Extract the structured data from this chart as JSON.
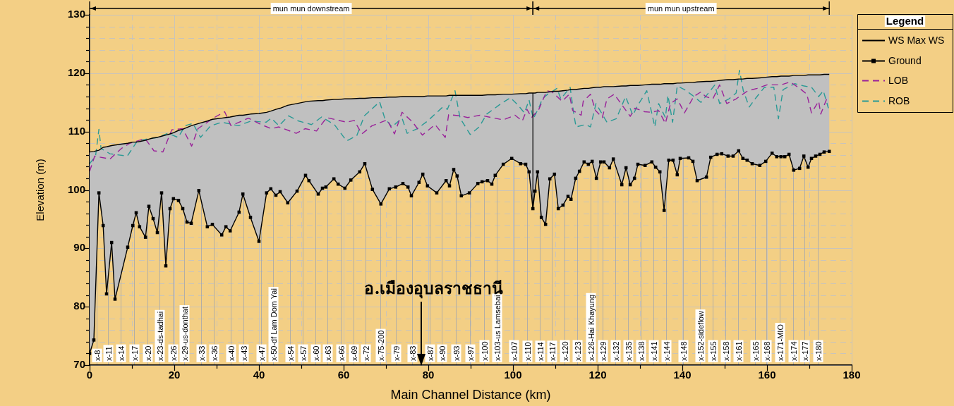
{
  "chart_data": {
    "type": "line",
    "xlabel": "Main Channel Distance (km)",
    "ylabel": "Elevation (m)",
    "xlim": [
      0,
      180
    ],
    "xticks": [
      0,
      {
        "value": 10,
        "label": null
      },
      20,
      {
        "value": 30,
        "label": null
      },
      40,
      {
        "value": 50,
        "label": null
      },
      60,
      {
        "value": 70,
        "label": null
      },
      80,
      {
        "value": 90,
        "label": null
      },
      100,
      {
        "value": 110,
        "label": null
      },
      120,
      {
        "value": 130,
        "label": null
      },
      140,
      {
        "value": 150,
        "label": null
      },
      160,
      {
        "value": 170,
        "label": null
      },
      180
    ],
    "ylim": [
      70,
      130
    ],
    "yticks": [
      70,
      {
        "value": 72,
        "label": null
      },
      {
        "value": 74,
        "label": null
      },
      {
        "value": 76,
        "label": null
      },
      {
        "value": 78,
        "label": null
      },
      80,
      {
        "value": 82,
        "label": null
      },
      {
        "value": 84,
        "label": null
      },
      {
        "value": 86,
        "label": null
      },
      {
        "value": 88,
        "label": null
      },
      90,
      {
        "value": 92,
        "label": null
      },
      {
        "value": 94,
        "label": null
      },
      {
        "value": 96,
        "label": null
      },
      {
        "value": 98,
        "label": null
      },
      100,
      {
        "value": 102,
        "label": null
      },
      {
        "value": 104,
        "label": null
      },
      {
        "value": 106,
        "label": null
      },
      {
        "value": 108,
        "label": null
      },
      110,
      {
        "value": 112,
        "label": null
      },
      {
        "value": 114,
        "label": null
      },
      {
        "value": 116,
        "label": null
      },
      {
        "value": 118,
        "label": null
      },
      120,
      {
        "value": 122,
        "label": null
      },
      {
        "value": 124,
        "label": null
      },
      {
        "value": 126,
        "label": null
      },
      {
        "value": 128,
        "label": null
      },
      130
    ],
    "grid": true,
    "legend": "right",
    "legend_title": "Legend",
    "marker": "none",
    "line_style": "solid",
    "series": [
      {
        "name": "WS Max WS",
        "type": "line",
        "color": "#000000",
        "x": [
          0,
          1,
          2.2,
          3.2,
          4,
          5.2,
          6,
          9,
          10.2,
          11,
          11.8,
          13.2,
          14,
          15,
          16,
          17,
          18,
          19,
          19.8,
          21,
          22,
          23,
          24,
          25.8,
          27.8,
          29,
          31.2,
          32.2,
          33.2,
          35.3,
          36.2,
          38,
          40,
          41.8,
          42.8,
          44,
          45,
          46.8,
          49,
          51,
          51.8,
          54,
          55,
          55.8,
          57.7,
          58.7,
          60.3,
          61.7,
          63.8,
          65,
          66.8,
          68.8,
          70.8,
          72.3,
          74,
          75.2,
          76,
          77.8,
          78.7,
          79.8,
          82,
          84.2,
          85,
          86,
          86.8,
          87.8,
          89.7,
          91.7,
          92.7,
          94,
          95,
          95.8,
          97.7,
          99.7,
          101.8,
          103,
          103.8,
          104.7,
          105.2,
          105.8,
          106.7,
          107.7,
          108.7,
          109.8,
          110.7,
          111.8,
          113,
          113.7,
          114.8,
          115.7,
          116.8,
          117.8,
          118.7,
          119.7,
          120.7,
          121.5,
          122.8,
          123.7,
          125.7,
          126.7,
          127.7,
          128.7,
          129.5,
          131.2,
          132.8,
          133.7,
          134.7,
          135.7,
          136.8,
          137.8,
          138.8,
          139.5,
          141.5,
          142.5,
          143.5,
          145.7,
          146.7,
          148.2,
          149.3,
          150.8,
          152,
          153.3,
          154.3,
          155.3,
          156.5,
          158.3,
          159.7,
          161.2,
          162.3,
          163.3,
          164.2,
          165.2,
          166.3,
          167.7,
          168.7,
          169.7,
          170.5,
          171.5,
          172.5,
          173.5,
          174.7
        ],
        "values": [
          106.5,
          106.6,
          106.8,
          107.3,
          107.4,
          107.6,
          107.7,
          108.0,
          108.2,
          108.2,
          108.3,
          108.5,
          108.7,
          108.9,
          109.0,
          109.2,
          109.4,
          109.6,
          109.8,
          110.2,
          110.4,
          110.7,
          111.0,
          111.4,
          111.8,
          112.1,
          112.3,
          112.4,
          112.5,
          112.8,
          112.8,
          113.0,
          113.1,
          113.3,
          113.5,
          113.8,
          114.0,
          114.5,
          114.8,
          115.1,
          115.2,
          115.3,
          115.3,
          115.4,
          115.5,
          115.5,
          115.6,
          115.6,
          115.7,
          115.7,
          115.8,
          115.8,
          115.9,
          115.9,
          116.0,
          116.0,
          116.0,
          116.0,
          116.0,
          116.1,
          116.1,
          116.1,
          116.2,
          116.2,
          116.2,
          116.2,
          116.2,
          116.2,
          116.2,
          116.3,
          116.3,
          116.3,
          116.4,
          116.4,
          116.5,
          116.5,
          116.6,
          116.6,
          116.6,
          116.7,
          116.7,
          116.7,
          116.8,
          116.9,
          116.9,
          117.0,
          117.1,
          117.2,
          117.2,
          117.3,
          117.4,
          117.4,
          117.5,
          117.6,
          117.6,
          117.7,
          117.7,
          117.7,
          117.8,
          117.8,
          117.9,
          117.9,
          117.9,
          118.0,
          118.1,
          118.1,
          118.1,
          118.2,
          118.2,
          118.2,
          118.3,
          118.3,
          118.4,
          118.4,
          118.5,
          118.6,
          118.6,
          118.7,
          118.8,
          118.9,
          118.9,
          119.0,
          119.0,
          119.1,
          119.1,
          119.2,
          119.3,
          119.4,
          119.4,
          119.5,
          119.5,
          119.5,
          119.6,
          119.6,
          119.6,
          119.7,
          119.7,
          119.7,
          119.7,
          119.8,
          119.8
        ],
        "upper": [
          106.5,
          106.6,
          106.8,
          107.3,
          107.4,
          107.6,
          107.7,
          108.0,
          108.2,
          108.2,
          108.3,
          108.5,
          108.7,
          108.9,
          109.0,
          109.2,
          109.4,
          109.6,
          109.8,
          110.2,
          110.4,
          110.7,
          111.0,
          111.4,
          111.8,
          112.1,
          112.3,
          112.4,
          112.5,
          112.8,
          112.8,
          113.0,
          113.1,
          113.3,
          113.5,
          113.8,
          114.0,
          114.5,
          114.8,
          115.1,
          115.2,
          115.3,
          115.3,
          115.4,
          115.5,
          115.5,
          115.6,
          115.6,
          115.7,
          115.7,
          115.8,
          115.8,
          115.9,
          115.9,
          116.0,
          116.0,
          116.0,
          116.0,
          116.0,
          116.1,
          116.1,
          116.1,
          116.2,
          116.2,
          116.2,
          116.2,
          116.2,
          116.2,
          116.2,
          116.3,
          116.3,
          116.3,
          116.4,
          116.4,
          116.5,
          116.5,
          116.6,
          116.6,
          116.6,
          116.7,
          116.7,
          116.7,
          116.8,
          116.9,
          116.9,
          117.0,
          117.1,
          117.2,
          117.2,
          117.3,
          117.4,
          117.4,
          117.5,
          117.6,
          117.6,
          117.7,
          117.7,
          117.7,
          117.8,
          117.8,
          117.9,
          117.9,
          117.9,
          118.0,
          118.1,
          118.1,
          118.1,
          118.2,
          118.2,
          118.2,
          118.3,
          118.3,
          118.4,
          118.4,
          118.5,
          118.6,
          118.6,
          118.7,
          118.8,
          118.9,
          118.9,
          119.0,
          119.0,
          119.1,
          119.1,
          119.2,
          119.3,
          119.4,
          119.4,
          119.5,
          119.5,
          119.5,
          119.6,
          119.6,
          119.6,
          119.7,
          119.7,
          119.7,
          119.7,
          119.8,
          119.8
        ],
        "lower": [
          72,
          74.3,
          99.5,
          93.9,
          82.2,
          91,
          81.3,
          90.2,
          93.9,
          96.1,
          93.7,
          91.9,
          97.2,
          95.1,
          92.7,
          99.5,
          87,
          96.8,
          98.5,
          98.2,
          96.8,
          94.5,
          94.3,
          99.9,
          93.7,
          94.1,
          92.3,
          93.7,
          93,
          96.2,
          99.3,
          95.3,
          91.2,
          99.5,
          100.2,
          99.1,
          99.7,
          97.8,
          99.8,
          102.5,
          101.6,
          99.3,
          100.3,
          100.5,
          101.9,
          101,
          100.3,
          101.7,
          103.1,
          104.5,
          100.1,
          97.6,
          100.2,
          100.5,
          101.1,
          100.5,
          99,
          101.3,
          102.7,
          100.7,
          99.5,
          101.6,
          100.7,
          103.5,
          102.4,
          99,
          99.5,
          101.1,
          101.4,
          101.6,
          101,
          102.5,
          104.4,
          105.4,
          104.5,
          104.4,
          103.1,
          96.8,
          99.8,
          103.1,
          95.3,
          94.1,
          101.9,
          102.7,
          96.8,
          97.4,
          98.9,
          98.4,
          102,
          103.2,
          104.8,
          104.4,
          104.9,
          102,
          104.8,
          104.8,
          103.8,
          105.3,
          100.9,
          103.8,
          100.9,
          102,
          104.4,
          104.2,
          104.8,
          103.9,
          103.1,
          96.5,
          105.1,
          105.1,
          102.6,
          105.4,
          105.5,
          104.9,
          101.6,
          102.2,
          105.6,
          106.1,
          106.2,
          105.8,
          105.8,
          106.7,
          105.4,
          105.1,
          104.5,
          104.2,
          104.9,
          106.3,
          105.7,
          105.7,
          105.7,
          106.1,
          103.4,
          103.7,
          105.8,
          103.9,
          105.4,
          105.8,
          106.1,
          106.5,
          106.6
        ]
      },
      {
        "name": "Ground",
        "type": "line",
        "color": "#000000",
        "marker": "square",
        "x": [
          0,
          1,
          2.2,
          3.2,
          4,
          5.2,
          6,
          9,
          10.2,
          11,
          11.8,
          13.2,
          14,
          15,
          16,
          17,
          18,
          19,
          19.8,
          21,
          22,
          23,
          24,
          25.8,
          27.8,
          29,
          31.2,
          32.2,
          33.2,
          35.3,
          36.2,
          38,
          40,
          41.8,
          42.8,
          44,
          45,
          46.8,
          49,
          51,
          51.8,
          54,
          55,
          55.8,
          57.7,
          58.7,
          60.3,
          61.7,
          63.8,
          65,
          66.8,
          68.8,
          70.8,
          72.3,
          74,
          75.2,
          76,
          77.8,
          78.7,
          79.8,
          82,
          84.2,
          85,
          86,
          86.8,
          87.8,
          89.7,
          91.7,
          92.7,
          94,
          95,
          95.8,
          97.7,
          99.7,
          101.8,
          103,
          103.8,
          104.7,
          105.2,
          105.8,
          106.7,
          107.7,
          108.7,
          109.8,
          110.7,
          111.8,
          113,
          113.7,
          114.8,
          115.7,
          116.8,
          117.8,
          118.7,
          119.7,
          120.7,
          121.5,
          122.8,
          123.7,
          125.7,
          126.7,
          127.7,
          128.7,
          129.5,
          131.2,
          132.8,
          133.7,
          134.7,
          135.7,
          136.8,
          137.8,
          138.8,
          139.5,
          141.5,
          142.5,
          143.5,
          145.7,
          146.7,
          148.2,
          149.3,
          150.8,
          152,
          153.3,
          154.3,
          155.3,
          156.5,
          158.3,
          159.7,
          161.2,
          162.3,
          163.3,
          164.2,
          165.2,
          166.3,
          167.7,
          168.7,
          169.7,
          170.5,
          171.5,
          172.5,
          173.5,
          174.7
        ],
        "values": [
          72,
          74.3,
          99.5,
          93.9,
          82.2,
          91,
          81.3,
          90.2,
          93.9,
          96.1,
          93.7,
          91.9,
          97.2,
          95.1,
          92.7,
          99.5,
          87,
          96.8,
          98.5,
          98.2,
          96.8,
          94.5,
          94.3,
          99.9,
          93.7,
          94.1,
          92.3,
          93.7,
          93,
          96.2,
          99.3,
          95.3,
          91.2,
          99.5,
          100.2,
          99.1,
          99.7,
          97.8,
          99.8,
          102.5,
          101.6,
          99.3,
          100.3,
          100.5,
          101.9,
          101,
          100.3,
          101.7,
          103.1,
          104.5,
          100.1,
          97.6,
          100.2,
          100.5,
          101.1,
          100.5,
          99,
          101.3,
          102.7,
          100.7,
          99.5,
          101.6,
          100.7,
          103.5,
          102.4,
          99,
          99.5,
          101.1,
          101.4,
          101.6,
          101,
          102.5,
          104.4,
          105.4,
          104.5,
          104.4,
          103.1,
          96.8,
          99.8,
          103.1,
          95.3,
          94.1,
          101.9,
          102.7,
          96.8,
          97.4,
          98.9,
          98.4,
          102,
          103.2,
          104.8,
          104.4,
          104.9,
          102,
          104.8,
          104.8,
          103.8,
          105.3,
          100.9,
          103.8,
          100.9,
          102,
          104.4,
          104.2,
          104.8,
          103.9,
          103.1,
          96.5,
          105.1,
          105.1,
          102.6,
          105.4,
          105.5,
          104.9,
          101.6,
          102.2,
          105.6,
          106.1,
          106.2,
          105.8,
          105.8,
          106.7,
          105.4,
          105.1,
          104.5,
          104.2,
          104.9,
          106.3,
          105.7,
          105.7,
          105.7,
          106.1,
          103.4,
          103.7,
          105.8,
          103.9,
          105.4,
          105.8,
          106.1,
          106.5,
          106.6
        ]
      },
      {
        "name": "LOB",
        "type": "line",
        "color": "#992299",
        "line_style": "dashed",
        "x": [
          0,
          1.2,
          4.8,
          7.5,
          9.5,
          13.1,
          15.2,
          17.3,
          19.4,
          22,
          24.1,
          25.6,
          29.2,
          31.9,
          33.4,
          37.5,
          40.5,
          42.9,
          44.7,
          48.8,
          50.9,
          53.6,
          56,
          60.7,
          62.5,
          64.3,
          66.7,
          70.3,
          72,
          73.8,
          76.2,
          78.6,
          81.6,
          84,
          84.8,
          87.5,
          89.3,
          92.2,
          97.7,
          100.5,
          102.2,
          103.3,
          104.4,
          106.1,
          108,
          109.2,
          111.6,
          113.3,
          114.1,
          116.1,
          116.6,
          118.3,
          119.5,
          121.1,
          122.2,
          123.9,
          126.1,
          127.7,
          128.8,
          131.1,
          132.7,
          134.4,
          136,
          137.2,
          138.8,
          140.5,
          142.7,
          144.4,
          145.5,
          147.2,
          148.8,
          150.5,
          152.7,
          155.5,
          157.7,
          160,
          163.3,
          165.5,
          167.7,
          169.4,
          170.5,
          172.2,
          172.7,
          174.1
        ],
        "values": [
          103.2,
          105.8,
          105.3,
          107.1,
          108,
          108.8,
          106.7,
          106.5,
          110.3,
          110.5,
          107.5,
          110.5,
          112.3,
          113.4,
          111,
          112.3,
          111.2,
          110.5,
          110.8,
          109.7,
          110.5,
          110.1,
          112.4,
          111.6,
          111.9,
          109.6,
          111,
          112,
          109.6,
          113.3,
          111.7,
          109.4,
          111.2,
          109,
          112.9,
          112.7,
          112.4,
          112.8,
          112,
          112.8,
          111.8,
          113.8,
          112.4,
          113.8,
          117,
          116.8,
          115.2,
          116.4,
          113.6,
          112.8,
          115.2,
          116.4,
          113.6,
          112.4,
          115.6,
          116.4,
          114.2,
          112.6,
          114,
          113.4,
          113.3,
          113.6,
          111.4,
          114.8,
          115.6,
          113.2,
          116,
          116.8,
          116,
          115.6,
          118,
          114.8,
          115.6,
          117,
          117.4,
          118,
          118,
          118.5,
          117.4,
          116.4,
          113.2,
          115.2,
          113,
          115.6
        ]
      },
      {
        "name": "ROB",
        "type": "line",
        "color": "#2a9a95",
        "line_style": "dashed",
        "x": [
          0,
          1.4,
          2.2,
          2.7,
          4.8,
          8.9,
          11.3,
          13.4,
          16.1,
          18.5,
          20.9,
          22.6,
          24.4,
          26.2,
          28.6,
          31.3,
          35.1,
          38.1,
          41.7,
          42.9,
          44.7,
          47,
          49.4,
          52.4,
          54.8,
          57.8,
          60.7,
          63.1,
          64.9,
          68.5,
          69.7,
          71.4,
          73.8,
          75,
          77.4,
          79.8,
          83.4,
          84.5,
          86.3,
          87.5,
          89.9,
          92,
          93.8,
          97.2,
          99.4,
          101.1,
          102.7,
          103.8,
          104.8,
          106.3,
          106.9,
          108.2,
          110.4,
          111.3,
          113.5,
          114.4,
          114.9,
          117.1,
          118.3,
          119.6,
          122.2,
          124.4,
          126.6,
          128.3,
          129.4,
          131.6,
          133.5,
          134.4,
          136,
          136.6,
          137.7,
          138.8,
          140.5,
          142.4,
          144.4,
          147.7,
          148.8,
          151,
          152.7,
          153.5,
          154.4,
          155.8,
          157.2,
          159.4,
          161.6,
          162.7,
          163.8,
          166.6,
          168.8,
          170.5,
          172.2,
          173.3,
          174.5
        ],
        "values": [
          104.5,
          105.8,
          110.4,
          107.1,
          106.2,
          105.8,
          108.4,
          108.7,
          109,
          109.7,
          109,
          111,
          111.4,
          109,
          111,
          111.6,
          111,
          111.8,
          111.6,
          112.3,
          111,
          112.7,
          111.8,
          111.2,
          112.5,
          111.2,
          108.4,
          109.3,
          112.7,
          115.1,
          112.3,
          110.8,
          112.3,
          109.7,
          110.5,
          111.8,
          114.2,
          113.8,
          117,
          112.3,
          109.5,
          110.8,
          113,
          114.8,
          115.8,
          114.6,
          113.2,
          115.4,
          112.2,
          114.4,
          115.6,
          116.4,
          117.4,
          115.6,
          117.6,
          112.8,
          110.8,
          111.2,
          110.8,
          114.8,
          111.6,
          112.2,
          116,
          112.8,
          114.4,
          117,
          110.8,
          114.8,
          112.4,
          116.2,
          111.6,
          117.8,
          117.2,
          116.2,
          115,
          118,
          114.8,
          115.6,
          116.6,
          120.5,
          117,
          114.2,
          115.6,
          117.6,
          117.6,
          112.2,
          117.2,
          118.2,
          117.8,
          117.6,
          116,
          117,
          114
        ]
      }
    ],
    "ref_lines": [
      {
        "axis": "x",
        "value": 104.7,
        "color": "#000000"
      },
      {
        "axis": "x",
        "value": 1.6,
        "label": "x-8"
      },
      {
        "axis": "x",
        "value": 4.4,
        "label": "x-11"
      },
      {
        "axis": "x",
        "value": 7.4,
        "label": "x-14"
      },
      {
        "axis": "x",
        "value": 10.5,
        "label": "x-17"
      },
      {
        "axis": "x",
        "value": 13.6,
        "label": "x-20"
      },
      {
        "axis": "x",
        "value": 16.5,
        "label": "x-23-ds-tadhai"
      },
      {
        "axis": "x",
        "value": 19.6,
        "label": "x-26"
      },
      {
        "axis": "x",
        "value": 22.4,
        "label": "x-29-us-donthat"
      },
      {
        "axis": "x",
        "value": 26.4,
        "label": "x-33"
      },
      {
        "axis": "x",
        "value": 29.4,
        "label": "x-36"
      },
      {
        "axis": "x",
        "value": 33.4,
        "label": "x-40"
      },
      {
        "axis": "x",
        "value": 36.3,
        "label": "x-43"
      },
      {
        "axis": "x",
        "value": 40.5,
        "label": "x-47"
      },
      {
        "axis": "x",
        "value": 43.4,
        "label": "x-50-df Lam Dom Yai"
      },
      {
        "axis": "x",
        "value": 47.4,
        "label": "x-54"
      },
      {
        "axis": "x",
        "value": 50.4,
        "label": "x-57"
      },
      {
        "axis": "x",
        "value": 53.3,
        "label": "x-60"
      },
      {
        "axis": "x",
        "value": 56.2,
        "label": "x-63"
      },
      {
        "axis": "x",
        "value": 59.4,
        "label": "x-66"
      },
      {
        "axis": "x",
        "value": 62.3,
        "label": "x-69"
      },
      {
        "axis": "x",
        "value": 65.2,
        "label": "x-72"
      },
      {
        "axis": "x",
        "value": 68.6,
        "label": "x-75-200"
      },
      {
        "axis": "x",
        "value": 72.4,
        "label": "x-79"
      },
      {
        "axis": "x",
        "value": 76.2,
        "label": "x-83"
      },
      {
        "axis": "x",
        "value": 80.4,
        "label": "x-87"
      },
      {
        "axis": "x",
        "value": 83.2,
        "label": "x-90"
      },
      {
        "axis": "x",
        "value": 86.5,
        "label": "x-93"
      },
      {
        "axis": "x",
        "value": 89.9,
        "label": "x-97"
      },
      {
        "axis": "x",
        "value": 93.2,
        "label": "x-100"
      },
      {
        "axis": "x",
        "value": 96.2,
        "label": "x-103-us Lamsebai"
      },
      {
        "axis": "x",
        "value": 100.2,
        "label": "x-107"
      },
      {
        "axis": "x",
        "value": 103.3,
        "label": "x-110"
      },
      {
        "axis": "x",
        "value": 106.3,
        "label": "x-114"
      },
      {
        "axis": "x",
        "value": 109.1,
        "label": "x-117"
      },
      {
        "axis": "x",
        "value": 112.1,
        "label": "x-120"
      },
      {
        "axis": "x",
        "value": 115.2,
        "label": "x-123"
      },
      {
        "axis": "x",
        "value": 118.3,
        "label": "x-126-Hai Khayung"
      },
      {
        "axis": "x",
        "value": 121.1,
        "label": "x-129"
      },
      {
        "axis": "x",
        "value": 124.1,
        "label": "x-132"
      },
      {
        "axis": "x",
        "value": 127.2,
        "label": "x-135"
      },
      {
        "axis": "x",
        "value": 130.2,
        "label": "x-138"
      },
      {
        "axis": "x",
        "value": 133.2,
        "label": "x-141"
      },
      {
        "axis": "x",
        "value": 136.1,
        "label": "x-144"
      },
      {
        "axis": "x",
        "value": 140.2,
        "label": "x-148"
      },
      {
        "axis": "x",
        "value": 144.1,
        "label": "x-152-sideflow"
      },
      {
        "axis": "x",
        "value": 147.2,
        "label": "x-155"
      },
      {
        "axis": "x",
        "value": 150.2,
        "label": "x-158"
      },
      {
        "axis": "x",
        "value": 153.2,
        "label": "x-161"
      },
      {
        "axis": "x",
        "value": 157.1,
        "label": "x-165"
      },
      {
        "axis": "x",
        "value": 159.9,
        "label": "x-168"
      },
      {
        "axis": "x",
        "value": 163,
        "label": "x-171-MIO"
      },
      {
        "axis": "x",
        "value": 166.1,
        "label": "x-174"
      },
      {
        "axis": "x",
        "value": 168.9,
        "label": "x-177"
      },
      {
        "axis": "x",
        "value": 172,
        "label": "x-180"
      }
    ],
    "annotations": [
      "mun mun downstream",
      "mun mun upstream",
      "อ.เมืองอุบลราชธานี"
    ]
  }
}
